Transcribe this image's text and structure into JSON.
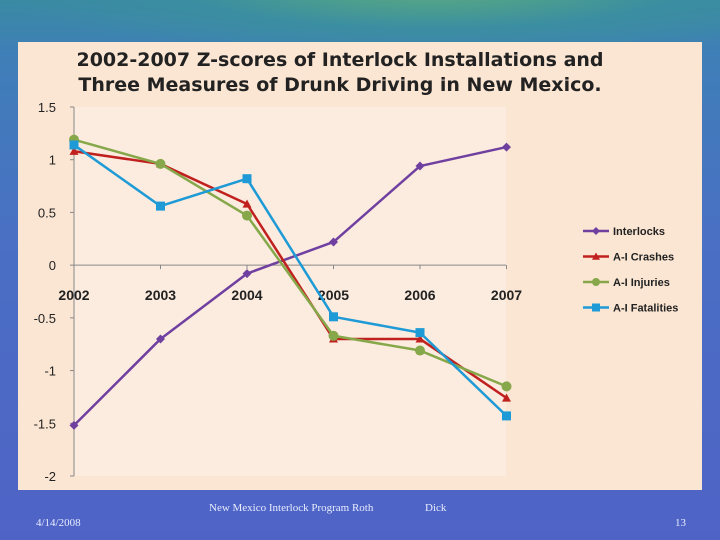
{
  "chart_data": {
    "type": "line",
    "title": [
      "2002-2007 Z-scores of Interlock Installations and",
      "Three Measures of Drunk Driving in New Mexico."
    ],
    "categories": [
      "2002",
      "2003",
      "2004",
      "2005",
      "2006",
      "2007"
    ],
    "ylim": [
      -2,
      1.5
    ],
    "yticks": [
      "1.5",
      "1",
      "0.5",
      "0",
      "-0.5",
      "-1",
      "-1.5",
      "-2"
    ],
    "ytick_values": [
      1.5,
      1,
      0.5,
      0,
      -0.5,
      -1,
      -1.5,
      -2
    ],
    "legend_position": "right",
    "grid": false,
    "series": [
      {
        "name": "Interlocks",
        "color": "#7040a0",
        "marker": "diamond",
        "values": [
          -1.52,
          -0.7,
          -0.08,
          0.22,
          0.94,
          1.12
        ]
      },
      {
        "name": "A-I Crashes",
        "color": "#c0201e",
        "marker": "triangle",
        "values": [
          1.08,
          0.96,
          0.58,
          -0.7,
          -0.7,
          -1.26
        ]
      },
      {
        "name": "A-I Injuries",
        "color": "#86a84a",
        "marker": "circle",
        "values": [
          1.19,
          0.96,
          0.47,
          -0.67,
          -0.81,
          -1.15
        ]
      },
      {
        "name": "A-I Fatalities",
        "color": "#1e9ad6",
        "marker": "square",
        "values": [
          1.14,
          0.56,
          0.82,
          -0.49,
          -0.64,
          -1.43
        ]
      }
    ]
  },
  "footer": {
    "date": "4/14/2008",
    "center": "New Mexico Interlock Program Roth",
    "author": "Dick",
    "page": "13"
  }
}
